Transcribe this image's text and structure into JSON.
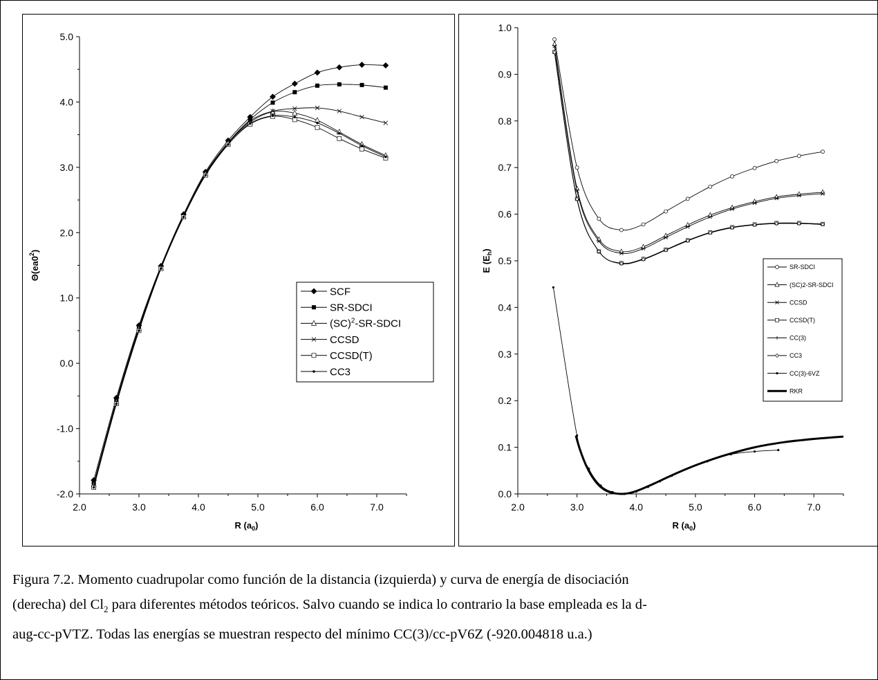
{
  "chart_data": [
    {
      "type": "line",
      "title": "",
      "xlabel": "R (a",
      "xlabel_sub": "0",
      "xlabel_close": ")",
      "ylabel": "Θ(ea0",
      "ylabel_sup": "2",
      "ylabel_close": ")",
      "xlim": [
        2.0,
        7.5
      ],
      "ylim": [
        -2.0,
        5.0
      ],
      "xticks": [
        "2.0",
        "3.0",
        "4.0",
        "5.0",
        "6.0",
        "7.0"
      ],
      "yticks": [
        "-2.0",
        "-1.0",
        "0.0",
        "1.0",
        "2.0",
        "3.0",
        "4.0",
        "5.0"
      ],
      "legend_position": "center-right",
      "series": [
        {
          "name": "SCF",
          "marker": "diamond-filled",
          "x": [
            2.24,
            2.62,
            3.0,
            3.37,
            3.75,
            4.12,
            4.5,
            4.87,
            5.25,
            5.62,
            6.0,
            6.37,
            6.75,
            7.15
          ],
          "y": [
            -1.79,
            -0.53,
            0.58,
            1.49,
            2.28,
            2.93,
            3.41,
            3.77,
            4.08,
            4.28,
            4.45,
            4.53,
            4.57,
            4.56
          ]
        },
        {
          "name": "SR-SDCI",
          "marker": "square-filled",
          "x": [
            2.24,
            2.62,
            3.0,
            3.37,
            3.75,
            4.12,
            4.5,
            4.87,
            5.25,
            5.62,
            6.0,
            6.37,
            6.75,
            7.15
          ],
          "y": [
            -1.84,
            -0.57,
            0.55,
            1.47,
            2.26,
            2.91,
            3.38,
            3.73,
            3.99,
            4.15,
            4.25,
            4.27,
            4.26,
            4.22
          ]
        },
        {
          "name": "(SC)",
          "name_sup": "2",
          "name_rest": "-SR-SDCI",
          "marker": "triangle-open",
          "x": [
            2.24,
            2.62,
            3.0,
            3.37,
            3.75,
            4.12,
            4.5,
            4.87,
            5.25,
            5.62,
            6.0,
            6.37,
            6.75,
            7.15
          ],
          "y": [
            -1.86,
            -0.59,
            0.53,
            1.46,
            2.25,
            2.9,
            3.37,
            3.69,
            3.85,
            3.83,
            3.72,
            3.54,
            3.35,
            3.18
          ]
        },
        {
          "name": "CCSD",
          "marker": "x",
          "x": [
            2.24,
            2.62,
            3.0,
            3.37,
            3.75,
            4.12,
            4.5,
            4.87,
            5.25,
            5.62,
            6.0,
            6.37,
            6.75,
            7.15
          ],
          "y": [
            -1.86,
            -0.59,
            0.53,
            1.46,
            2.25,
            2.9,
            3.37,
            3.71,
            3.86,
            3.9,
            3.91,
            3.86,
            3.77,
            3.68
          ]
        },
        {
          "name": "CCSD(T)",
          "marker": "square-open",
          "x": [
            2.24,
            2.62,
            3.0,
            3.37,
            3.75,
            4.12,
            4.5,
            4.87,
            5.25,
            5.62,
            6.0,
            6.37,
            6.75,
            7.15
          ],
          "y": [
            -1.9,
            -0.62,
            0.5,
            1.45,
            2.24,
            2.88,
            3.35,
            3.66,
            3.78,
            3.73,
            3.61,
            3.44,
            3.28,
            3.14
          ]
        },
        {
          "name": "CC3",
          "marker": "dot",
          "x": [
            2.24,
            2.62,
            3.0,
            3.37,
            3.75,
            4.12,
            4.5,
            4.87,
            5.25,
            5.62,
            6.0,
            6.37,
            6.75,
            7.15
          ],
          "y": [
            -1.9,
            -0.62,
            0.5,
            1.45,
            2.24,
            2.88,
            3.35,
            3.67,
            3.79,
            3.77,
            3.68,
            3.52,
            3.33,
            3.16
          ]
        }
      ]
    },
    {
      "type": "line",
      "title": "",
      "xlabel": "R (a",
      "xlabel_sub": "0",
      "xlabel_close": ")",
      "ylabel": "E (E",
      "ylabel_sub": "h",
      "ylabel_close": ")",
      "xlim": [
        2.0,
        7.5
      ],
      "ylim": [
        0.0,
        1.0
      ],
      "xticks": [
        "2.0",
        "3.0",
        "4.0",
        "5.0",
        "6.0",
        "7.0"
      ],
      "yticks": [
        "0.0",
        "0.1",
        "0.2",
        "0.3",
        "0.4",
        "0.5",
        "0.6",
        "0.7",
        "0.8",
        "0.9",
        "1.0"
      ],
      "legend_position": "right",
      "series": [
        {
          "name": "SR-SDCI",
          "marker": "circle-open",
          "x": [
            2.62,
            3.0,
            3.37,
            3.75,
            4.12,
            4.5,
            4.87,
            5.25,
            5.62,
            6.0,
            6.37,
            6.75,
            7.15
          ],
          "y": [
            0.975,
            0.7,
            0.59,
            0.566,
            0.578,
            0.606,
            0.633,
            0.659,
            0.681,
            0.699,
            0.714,
            0.725,
            0.734
          ]
        },
        {
          "name": "(SC)2-SR-SDCI",
          "marker": "triangle-open",
          "x": [
            2.62,
            3.0,
            3.37,
            3.75,
            4.12,
            4.5,
            4.87,
            5.25,
            5.62,
            6.0,
            6.37,
            6.75,
            7.15
          ],
          "y": [
            0.965,
            0.655,
            0.546,
            0.52,
            0.53,
            0.554,
            0.577,
            0.598,
            0.614,
            0.627,
            0.637,
            0.643,
            0.647
          ]
        },
        {
          "name": "CCSD",
          "marker": "x",
          "x": [
            2.62,
            3.0,
            3.37,
            3.75,
            4.12,
            4.5,
            4.87,
            5.25,
            5.62,
            6.0,
            6.37,
            6.75,
            7.15
          ],
          "y": [
            0.96,
            0.65,
            0.542,
            0.516,
            0.526,
            0.55,
            0.573,
            0.594,
            0.611,
            0.624,
            0.634,
            0.64,
            0.644
          ]
        },
        {
          "name": "CCSD(T)",
          "marker": "square-open",
          "x": [
            2.62,
            3.0,
            3.37,
            3.75,
            4.12,
            4.5,
            4.87,
            5.25,
            5.62,
            6.0,
            6.37,
            6.75,
            7.15
          ],
          "y": [
            0.948,
            0.633,
            0.52,
            0.495,
            0.504,
            0.524,
            0.544,
            0.561,
            0.572,
            0.578,
            0.581,
            0.581,
            0.579
          ]
        },
        {
          "name": "CC(3)",
          "marker": "plus",
          "x": [
            2.62,
            3.0,
            3.37,
            3.75,
            4.12,
            4.5,
            4.87,
            5.25,
            5.62,
            6.0,
            6.37,
            6.75,
            7.15
          ],
          "y": [
            0.947,
            0.632,
            0.52,
            0.494,
            0.503,
            0.523,
            0.543,
            0.56,
            0.571,
            0.577,
            0.58,
            0.58,
            0.578
          ]
        },
        {
          "name": "CC3",
          "marker": "diamond-open",
          "x": [
            2.62,
            3.0,
            3.37,
            3.75,
            4.12,
            4.5,
            4.87,
            5.25,
            5.62,
            6.0,
            6.37,
            6.75,
            7.15
          ],
          "y": [
            0.947,
            0.632,
            0.52,
            0.494,
            0.503,
            0.523,
            0.543,
            0.56,
            0.571,
            0.577,
            0.58,
            0.58,
            0.578
          ]
        },
        {
          "name": "CC(3)-6VZ",
          "marker": "dot",
          "x": [
            2.6,
            3.0,
            3.2,
            3.4,
            3.6,
            3.8,
            4.0,
            4.2,
            4.4,
            4.6,
            5.2,
            5.6,
            6.0,
            6.4
          ],
          "y": [
            0.443,
            0.125,
            0.054,
            0.018,
            0.004,
            0.0,
            0.005,
            0.015,
            0.027,
            0.039,
            0.07,
            0.085,
            0.091,
            0.094
          ]
        },
        {
          "name": "RKR",
          "marker": "thick-line",
          "x": [
            2.98,
            3.05,
            3.15,
            3.25,
            3.35,
            3.45,
            3.55,
            3.65,
            3.75,
            3.85,
            3.95,
            4.1,
            4.3,
            4.5,
            4.8,
            5.1,
            5.5,
            6.0,
            6.5,
            7.0,
            7.5
          ],
          "y": [
            0.125,
            0.095,
            0.062,
            0.038,
            0.021,
            0.01,
            0.004,
            0.001,
            0.0,
            0.001,
            0.004,
            0.011,
            0.022,
            0.034,
            0.051,
            0.066,
            0.083,
            0.1,
            0.111,
            0.118,
            0.123
          ]
        }
      ]
    }
  ],
  "caption": {
    "line1": "Figura 7.2. Momento cuadrupolar como función de la distancia (izquierda) y curva de energía de disociación",
    "line2_a": "(derecha) del Cl",
    "line2_sub": "2",
    "line2_b": " para diferentes métodos teóricos. Salvo cuando se indica lo contrario la base empleada es la d-",
    "line3": "aug-cc-pVTZ. Todas las energías se muestran respecto del mínimo CC(3)/cc-pV6Z (-920.004818 u.a.)"
  }
}
